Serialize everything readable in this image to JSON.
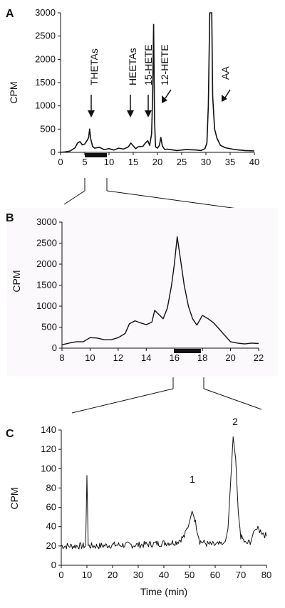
{
  "chart_data": [
    {
      "type": "line",
      "panel": "A",
      "title": "",
      "xlabel": "",
      "ylabel": "CPM",
      "xlim": [
        0,
        40
      ],
      "ylim": [
        0,
        3000
      ],
      "xticks": [
        0,
        5,
        10,
        15,
        20,
        25,
        30,
        35,
        40
      ],
      "yticks": [
        0,
        500,
        1000,
        1500,
        2000,
        2500,
        3000
      ],
      "series": [
        {
          "x": [
            0,
            1,
            2,
            3,
            3.5,
            4,
            4.5,
            5,
            5.5,
            5.8,
            6,
            6.2,
            6.6,
            7,
            8,
            9,
            10,
            11,
            12,
            13,
            14,
            14.5,
            15,
            15.5,
            16,
            17,
            17.5,
            18,
            18.4,
            18.8,
            19,
            19.2,
            19.4,
            19.6,
            20,
            20.4,
            20.7,
            21,
            21.5,
            22,
            24,
            26,
            28,
            29,
            29.8,
            30.2,
            30.5,
            30.8,
            31,
            31.2,
            31.4,
            31.8,
            32.3,
            33,
            34,
            36,
            38,
            40
          ],
          "y": [
            0,
            10,
            30,
            100,
            200,
            230,
            160,
            180,
            260,
            320,
            500,
            300,
            130,
            90,
            110,
            60,
            80,
            50,
            90,
            70,
            120,
            200,
            140,
            80,
            120,
            130,
            200,
            250,
            150,
            400,
            1200,
            2750,
            700,
            120,
            90,
            150,
            320,
            140,
            60,
            70,
            40,
            60,
            50,
            40,
            80,
            200,
            1000,
            3000,
            3000,
            3000,
            1200,
            500,
            300,
            150,
            100,
            60,
            40,
            30
          ]
        }
      ],
      "annotations": [
        "THETAs",
        "HEETAs",
        "15-HETE",
        "12-HETE",
        "AA"
      ]
    },
    {
      "type": "line",
      "panel": "B",
      "title": "",
      "xlabel": "",
      "ylabel": "CPM",
      "xlim": [
        8,
        22
      ],
      "ylim": [
        0,
        3000
      ],
      "xticks": [
        8,
        10,
        12,
        14,
        16,
        18,
        20,
        22
      ],
      "yticks": [
        0,
        500,
        1000,
        1500,
        2000,
        2500,
        3000
      ],
      "series": [
        {
          "x": [
            8,
            8.5,
            9,
            9.5,
            10,
            10.5,
            11,
            11.5,
            12,
            12.5,
            12.8,
            13.2,
            13.6,
            14,
            14.4,
            14.6,
            14.9,
            15.2,
            15.5,
            15.8,
            16,
            16.2,
            16.4,
            16.7,
            17,
            17.3,
            17.6,
            18,
            18.4,
            18.8,
            19.2,
            19.6,
            20,
            20.5,
            21,
            21.5,
            22
          ],
          "y": [
            80,
            120,
            150,
            150,
            250,
            240,
            200,
            200,
            250,
            350,
            580,
            650,
            600,
            560,
            620,
            900,
            800,
            700,
            950,
            1500,
            2000,
            2650,
            2200,
            1500,
            1000,
            700,
            550,
            780,
            700,
            600,
            450,
            300,
            150,
            120,
            100,
            120,
            110
          ]
        }
      ]
    },
    {
      "type": "line",
      "panel": "C",
      "title": "",
      "xlabel": "Time (min)",
      "ylabel": "CPM",
      "xlim": [
        0,
        80
      ],
      "ylim": [
        0,
        140
      ],
      "xticks": [
        0,
        10,
        20,
        30,
        40,
        50,
        60,
        70,
        80
      ],
      "yticks": [
        0,
        20,
        40,
        60,
        80,
        100,
        120,
        140
      ],
      "series": [
        {
          "x": [
            0,
            5,
            9.5,
            10,
            10.5,
            15,
            20,
            30,
            40,
            45,
            48,
            50,
            51,
            52,
            54,
            57,
            60,
            63,
            64,
            65,
            66,
            67,
            68,
            69,
            70,
            72,
            74,
            75,
            76,
            78,
            80
          ],
          "y": [
            20,
            20,
            20,
            93,
            20,
            20,
            21,
            21,
            23,
            24,
            30,
            45,
            56,
            48,
            25,
            22,
            21,
            22,
            25,
            38,
            85,
            133,
            110,
            55,
            30,
            22,
            25,
            35,
            38,
            35,
            30
          ]
        }
      ],
      "peak_labels": [
        "1",
        "2"
      ]
    }
  ],
  "panels": {
    "a": {
      "letter": "A",
      "ylabel": "CPM",
      "ann": {
        "thetas": "THETAs",
        "heetas": "HEETAs",
        "hete15": "15-HETE",
        "hete12": "12-HETE",
        "aa": "AA"
      }
    },
    "b": {
      "letter": "B",
      "ylabel": "CPM"
    },
    "c": {
      "letter": "C",
      "ylabel": "CPM",
      "xlabel": "Time (min)",
      "peak1": "1",
      "peak2": "2"
    }
  }
}
